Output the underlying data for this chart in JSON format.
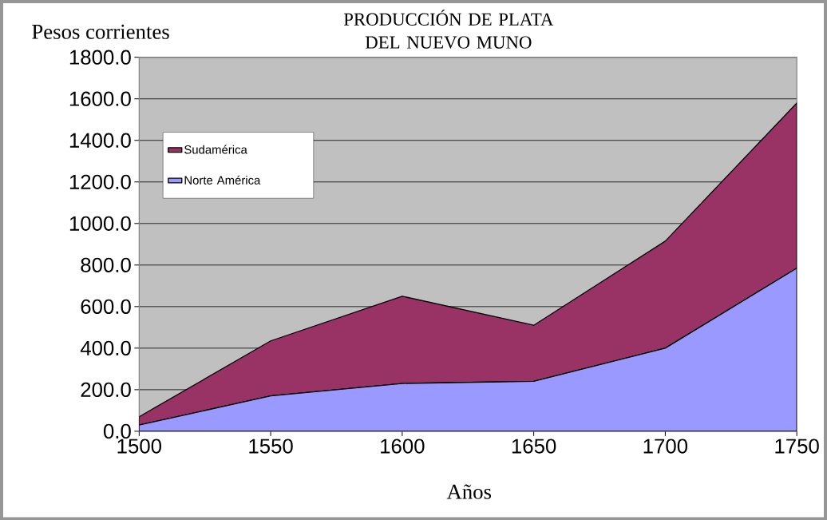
{
  "chart_data": {
    "type": "area",
    "stacked": true,
    "title": "PRODUCCIÓN DE PLATA DEL NUEVO MUNO",
    "ylabel": "Pesos corrientes",
    "xlabel": "Años",
    "x": [
      1500,
      1550,
      1600,
      1650,
      1700,
      1750
    ],
    "series": [
      {
        "name": "Norte América",
        "color": "#9999ff",
        "values": [
          30,
          170,
          230,
          240,
          400,
          785
        ]
      },
      {
        "name": "Sudamérica",
        "color": "#993366",
        "values": [
          40,
          265,
          420,
          270,
          515,
          795
        ]
      }
    ],
    "xlim": [
      1500,
      1750
    ],
    "xticks": [
      1500,
      1550,
      1600,
      1650,
      1700,
      1750
    ],
    "ylim": [
      0,
      1800
    ],
    "yticks": [
      {
        "value": 0,
        "label": "0.0"
      },
      {
        "value": 200,
        "label": "200.0"
      },
      {
        "value": 400,
        "label": "400.0"
      },
      {
        "value": 600,
        "label": "600.0"
      },
      {
        "value": 800,
        "label": "800.0"
      },
      {
        "value": 1000,
        "label": "1000.0"
      },
      {
        "value": 1200,
        "label": "1200.0"
      },
      {
        "value": 1400,
        "label": "1400.0"
      },
      {
        "value": 1600,
        "label": "1600.0"
      },
      {
        "value": 1800,
        "label": "1800.0"
      }
    ],
    "grid": "y",
    "legend": "top left"
  }
}
